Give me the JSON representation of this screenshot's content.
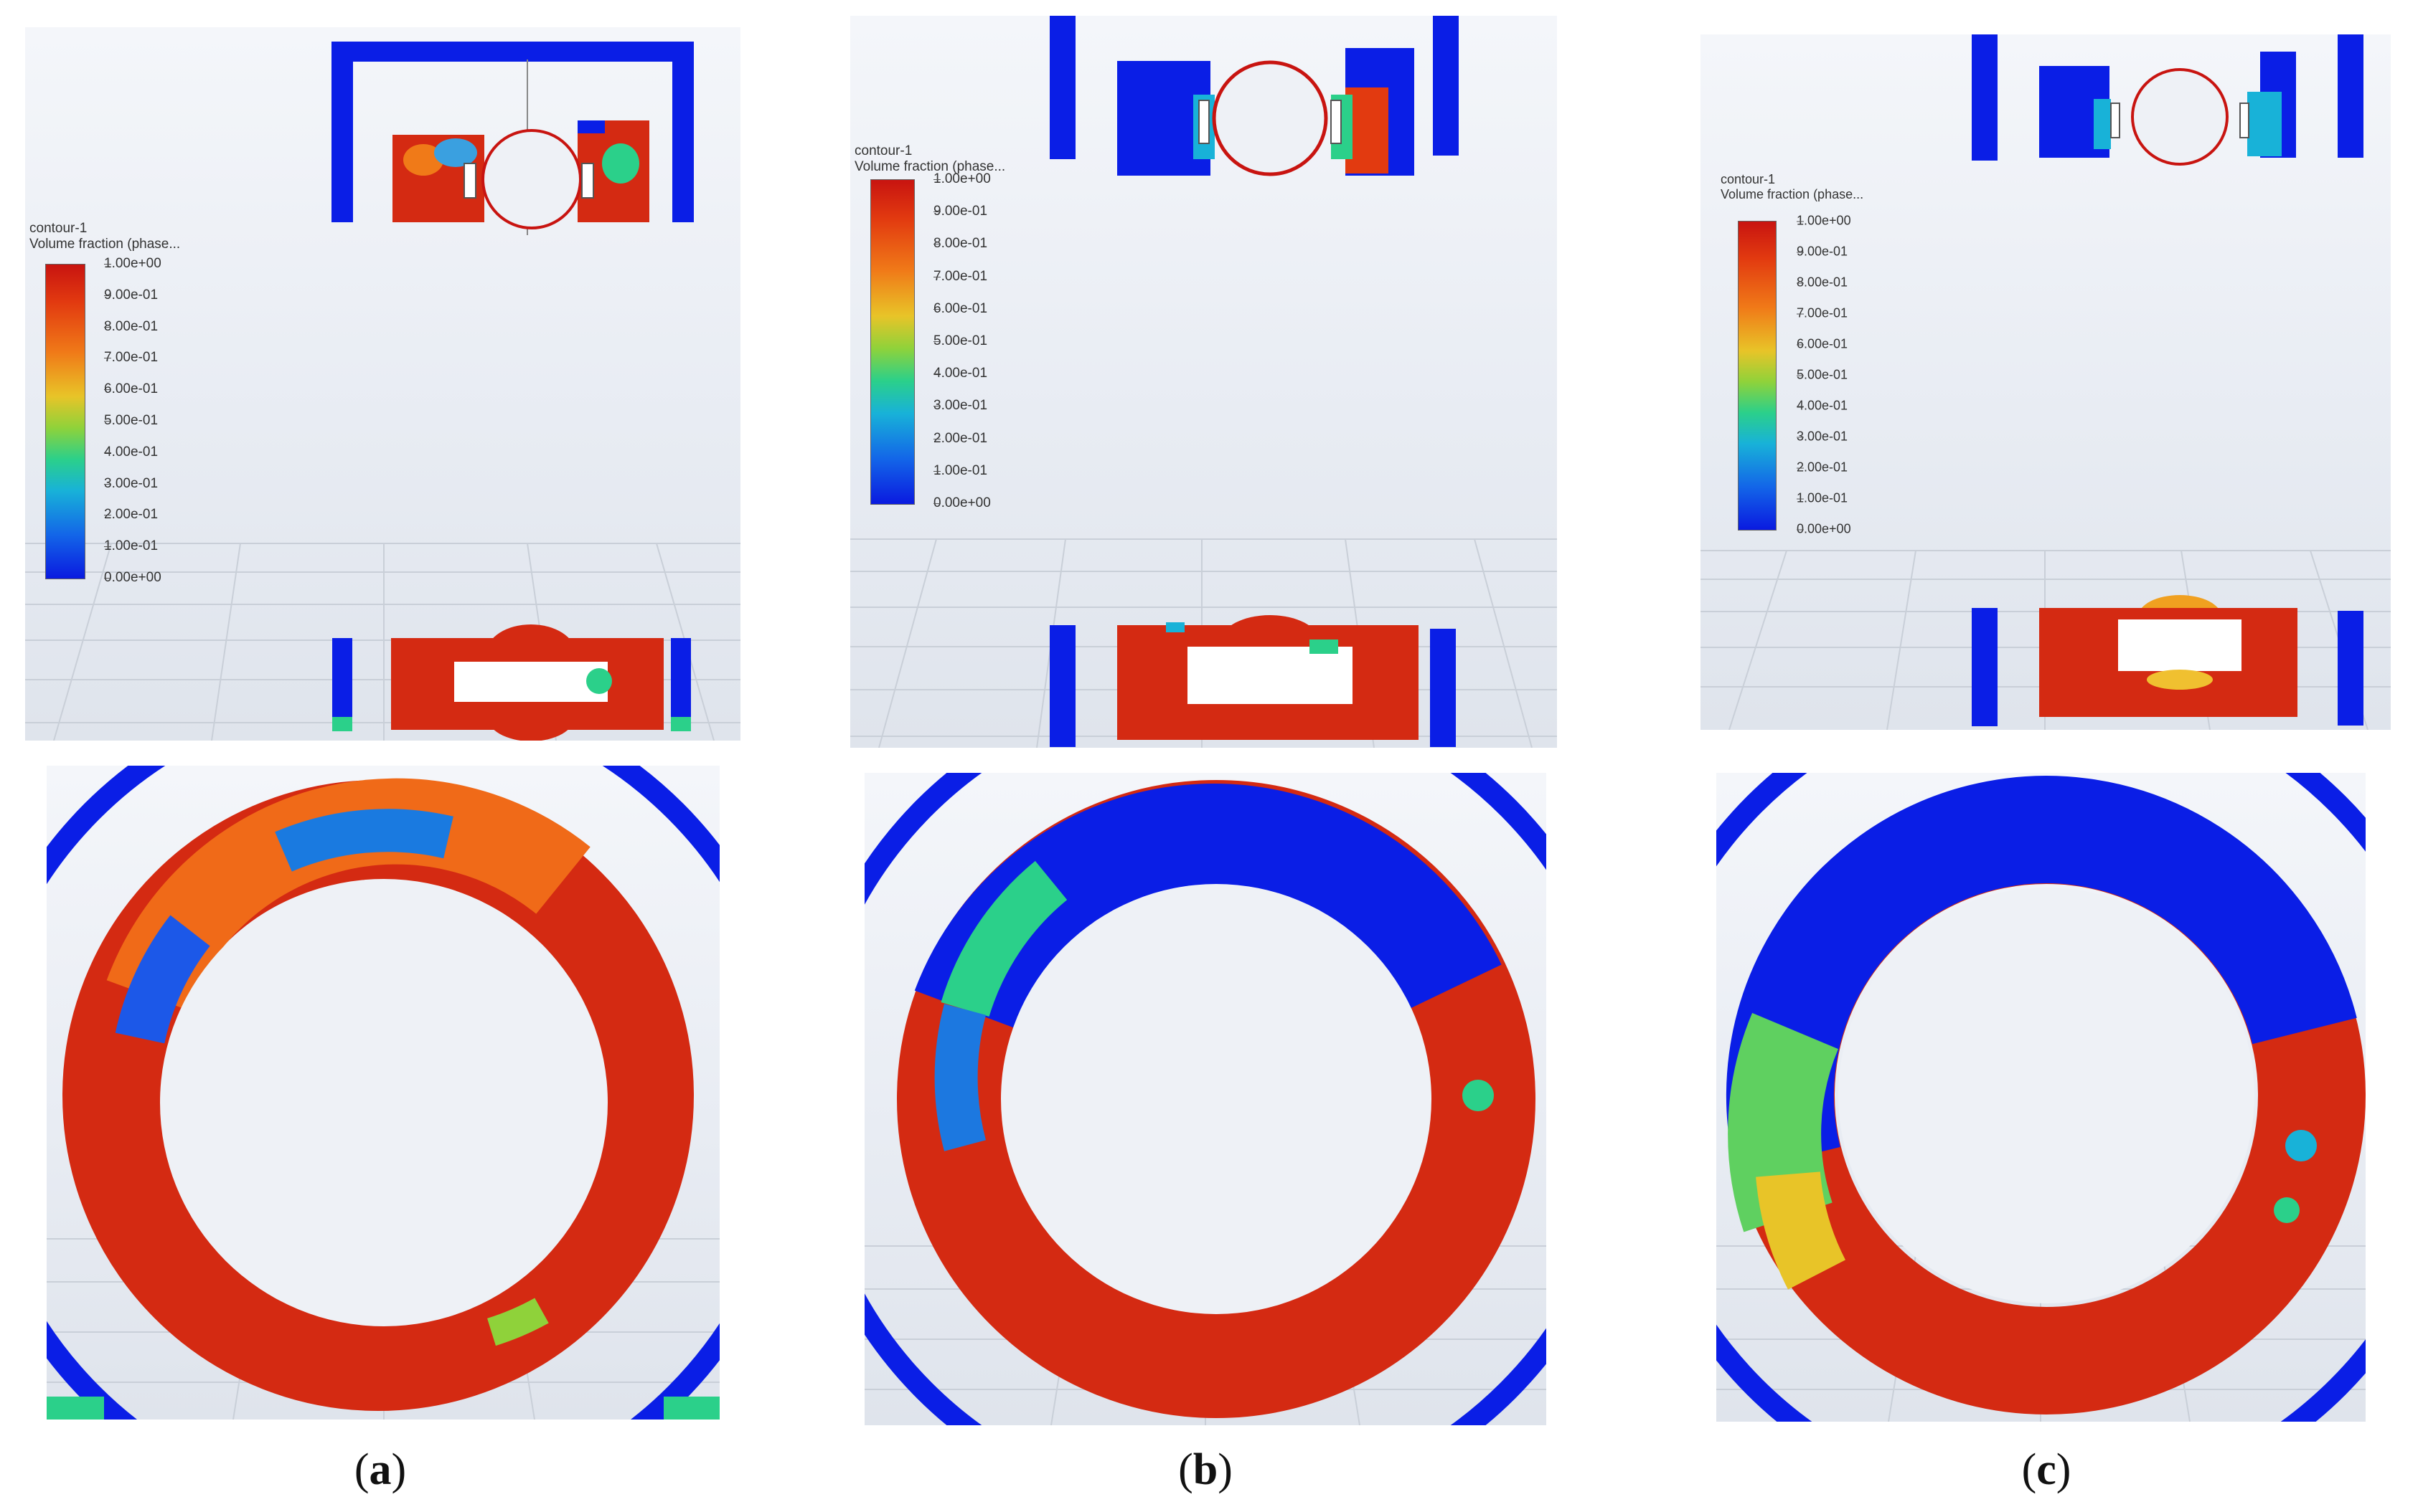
{
  "figures": [
    {
      "id": "a",
      "legend": {
        "title_line1": "contour-1",
        "title_line2": "Volume fraction (phase...",
        "ticks": [
          "1.00e+00",
          "9.00e-01",
          "8.00e-01",
          "7.00e-01",
          "6.00e-01",
          "5.00e-01",
          "4.00e-01",
          "3.00e-01",
          "2.00e-01",
          "1.00e-01",
          "0.00e+00"
        ]
      },
      "caption": {
        "open": "(",
        "letter": "a",
        "close": ")"
      }
    },
    {
      "id": "b",
      "legend": {
        "title_line1": "contour-1",
        "title_line2": "Volume fraction (phase...",
        "ticks": [
          "1.00e+00",
          "9.00e-01",
          "8.00e-01",
          "7.00e-01",
          "6.00e-01",
          "5.00e-01",
          "4.00e-01",
          "3.00e-01",
          "2.00e-01",
          "1.00e-01",
          "0.00e+00"
        ]
      },
      "caption": {
        "open": "(",
        "letter": "b",
        "close": ")"
      }
    },
    {
      "id": "c",
      "legend": {
        "title_line1": "contour-1",
        "title_line2": "Volume fraction (phase...",
        "ticks": [
          "1.00e+00",
          "9.00e-01",
          "8.00e-01",
          "7.00e-01",
          "6.00e-01",
          "5.00e-01",
          "4.00e-01",
          "3.00e-01",
          "2.00e-01",
          "1.00e-01",
          "0.00e+00"
        ]
      },
      "caption": {
        "open": "(",
        "letter": "c",
        "close": ")"
      }
    }
  ],
  "colors": {
    "liquid": "#d42a12",
    "gas": "#0a1ee6",
    "wall": "#0a1ee6",
    "background": "#eef1f6"
  }
}
